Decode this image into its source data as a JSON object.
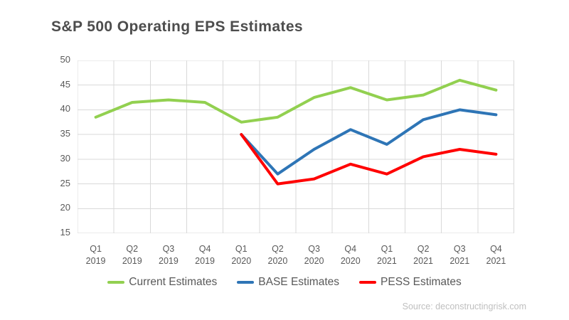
{
  "page": {
    "title": "S&P 500 Operating EPS Estimates",
    "source": "Source: deconstructingrisk.com"
  },
  "colors": {
    "title_text": "#4d4d4d",
    "axis_text": "#595959",
    "gridline": "#d9d9d9",
    "source_text": "#bfbfbf",
    "current": "#92D050",
    "base": "#2E75B6",
    "pess": "#FF0000"
  },
  "chart_data": {
    "type": "line",
    "title": "S&P 500 Operating EPS Estimates",
    "xlabel": "",
    "ylabel": "",
    "ylim": [
      15,
      50
    ],
    "yticks": [
      50,
      45,
      40,
      35,
      30,
      25,
      20,
      15
    ],
    "grid": true,
    "legend_position": "bottom",
    "categories": [
      "Q1 2019",
      "Q2 2019",
      "Q3 2019",
      "Q4 2019",
      "Q1 2020",
      "Q2 2020",
      "Q3 2020",
      "Q4 2020",
      "Q1 2021",
      "Q2 2021",
      "Q3 2021",
      "Q4 2021"
    ],
    "series": [
      {
        "name": "Current Estimates",
        "color": "#92D050",
        "values": [
          38.5,
          41.5,
          42,
          41.5,
          37.5,
          38.5,
          42.5,
          44.5,
          42,
          43,
          46,
          44
        ]
      },
      {
        "name": "BASE Estimates",
        "color": "#2E75B6",
        "values": [
          null,
          null,
          null,
          null,
          35,
          27,
          32,
          36,
          33,
          38,
          40,
          39
        ]
      },
      {
        "name": "PESS Estimates",
        "color": "#FF0000",
        "values": [
          null,
          null,
          null,
          null,
          35,
          25,
          26,
          29,
          27,
          30.5,
          32,
          31
        ]
      }
    ]
  }
}
